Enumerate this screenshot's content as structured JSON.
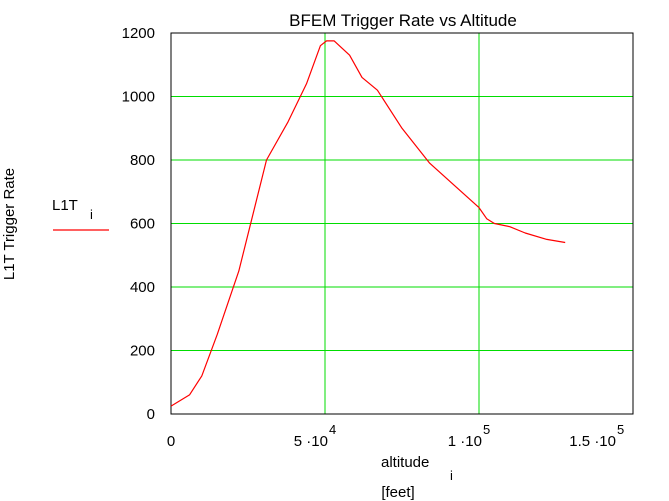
{
  "chart_data": {
    "type": "line",
    "title": "BFEM Trigger Rate vs Altitude",
    "ylabel": "L1T Trigger Rate",
    "xlabel": {
      "main": "altitude",
      "sub": "i"
    },
    "xunit": "[feet]",
    "legend": {
      "main": "L1T",
      "sub": "i",
      "placement": "left-middle"
    },
    "xlim": [
      0,
      150000
    ],
    "ylim": [
      0,
      1200
    ],
    "y_ticks": [
      {
        "value": 0,
        "label": "0"
      },
      {
        "value": 200,
        "label": "200"
      },
      {
        "value": 400,
        "label": "400"
      },
      {
        "value": 600,
        "label": "600"
      },
      {
        "value": 800,
        "label": "800"
      },
      {
        "value": 1000,
        "label": "1000"
      },
      {
        "value": 1200,
        "label": "1200"
      }
    ],
    "x_ticks": [
      {
        "value": 0,
        "mantissa": "0",
        "exponent": ""
      },
      {
        "value": 50000,
        "mantissa": "5 ·10",
        "exponent": "4"
      },
      {
        "value": 100000,
        "mantissa": "1 ·10",
        "exponent": "5"
      },
      {
        "value": 150000,
        "mantissa": "1.5 ·10",
        "exponent": "5"
      }
    ],
    "grid": true,
    "grid_color": "#00dd00",
    "line_color": "#ff0000",
    "series": [
      {
        "x": [
          0,
          6000,
          10000,
          15000,
          22000,
          31000,
          38000,
          44000,
          48500,
          50500,
          53000,
          58000,
          62000,
          67000,
          75000,
          84000,
          92000,
          100000,
          102500,
          105000,
          110000,
          115000,
          122000,
          128000
        ],
        "y": [
          25,
          60,
          120,
          250,
          450,
          800,
          920,
          1040,
          1160,
          1175,
          1175,
          1130,
          1060,
          1020,
          900,
          790,
          720,
          650,
          615,
          600,
          590,
          570,
          550,
          540
        ]
      }
    ]
  }
}
